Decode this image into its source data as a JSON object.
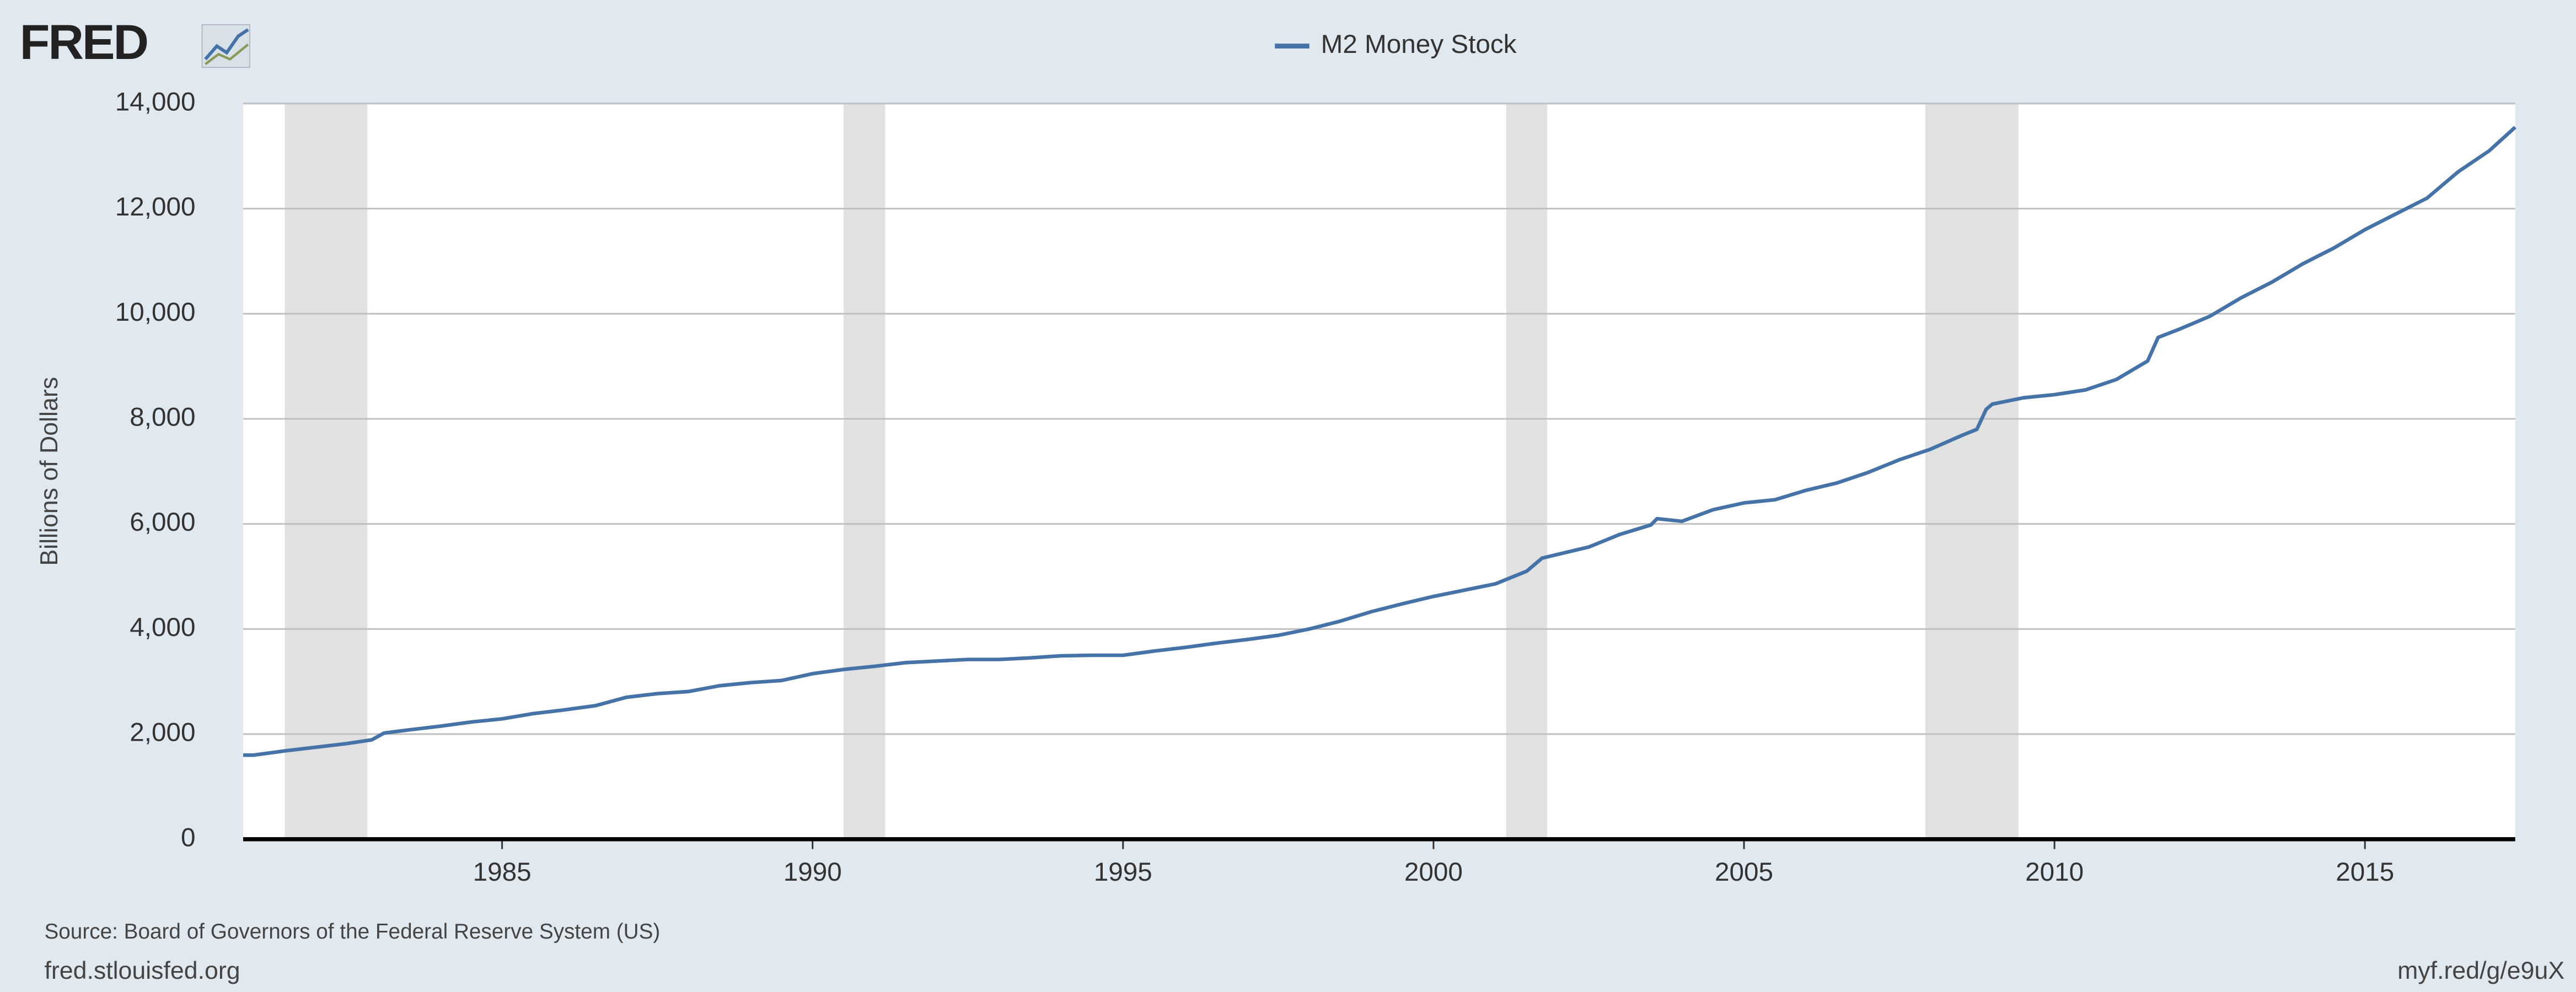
{
  "chart_data": {
    "type": "line",
    "logo": "FRED",
    "ylabel": "Billions of Dollars",
    "source": "Source: Board of Governors of the Federal Reserve System (US)",
    "footer_left": "fred.stlouisfed.org",
    "footer_right": "myf.red/g/e9uX",
    "x": [
      1980.83,
      1981.0,
      1981.5,
      1982.0,
      1982.5,
      1982.9,
      1983.1,
      1983.5,
      1984.0,
      1984.5,
      1985.0,
      1985.5,
      1986.0,
      1986.5,
      1987.0,
      1987.5,
      1988.0,
      1988.5,
      1989.0,
      1989.5,
      1990.0,
      1990.5,
      1991.0,
      1991.5,
      1992.0,
      1992.5,
      1993.0,
      1993.5,
      1994.0,
      1994.5,
      1995.0,
      1995.5,
      1996.0,
      1996.5,
      1997.0,
      1997.5,
      1998.0,
      1998.5,
      1999.0,
      1999.5,
      2000.0,
      2000.5,
      2001.0,
      2001.5,
      2001.75,
      2002.0,
      2002.5,
      2003.0,
      2003.5,
      2003.6,
      2004.0,
      2004.5,
      2005.0,
      2005.5,
      2006.0,
      2006.5,
      2007.0,
      2007.5,
      2008.0,
      2008.5,
      2008.75,
      2008.9,
      2009.0,
      2009.5,
      2010.0,
      2010.5,
      2011.0,
      2011.5,
      2011.67,
      2012.0,
      2012.5,
      2013.0,
      2013.5,
      2014.0,
      2014.5,
      2015.0,
      2015.5,
      2016.0,
      2016.5,
      2017.0,
      2017.42
    ],
    "series": [
      {
        "name": "M2 Money Stock",
        "color": "#4572a7",
        "values": [
          1600,
          1600,
          1680,
          1750,
          1820,
          1890,
          2020,
          2080,
          2150,
          2230,
          2290,
          2390,
          2460,
          2540,
          2700,
          2770,
          2810,
          2920,
          2980,
          3020,
          3150,
          3230,
          3290,
          3360,
          3390,
          3420,
          3420,
          3450,
          3490,
          3500,
          3500,
          3580,
          3650,
          3730,
          3800,
          3880,
          4000,
          4150,
          4330,
          4480,
          4620,
          4740,
          4860,
          5100,
          5350,
          5420,
          5560,
          5800,
          5980,
          6100,
          6050,
          6270,
          6400,
          6460,
          6640,
          6780,
          6980,
          7220,
          7420,
          7680,
          7800,
          8180,
          8280,
          8400,
          8460,
          8550,
          8750,
          9100,
          9550,
          9700,
          9950,
          10300,
          10600,
          10950,
          11250,
          11600,
          11900,
          12200,
          12700,
          13100,
          13550
        ]
      }
    ],
    "recessions": [
      [
        1981.5,
        1982.83
      ],
      [
        1990.5,
        1991.17
      ],
      [
        2001.17,
        2001.83
      ],
      [
        2007.92,
        2009.42
      ]
    ],
    "recession_color": "#e1e1e1",
    "xlim": [
      1980.83,
      2017.42
    ],
    "xticks": [
      1985,
      1990,
      1995,
      2000,
      2005,
      2010,
      2015
    ],
    "ylim": [
      0,
      14000
    ],
    "yticks": [
      0,
      {
        "value": 2000,
        "label": "2,000"
      },
      {
        "value": 4000,
        "label": "4,000"
      },
      {
        "value": 6000,
        "label": "6,000"
      },
      {
        "value": 8000,
        "label": "8,000"
      },
      {
        "value": 10000,
        "label": "10,000"
      },
      {
        "value": 12000,
        "label": "12,000"
      },
      {
        "value": 14000,
        "label": "14,000"
      }
    ],
    "grid": true
  }
}
